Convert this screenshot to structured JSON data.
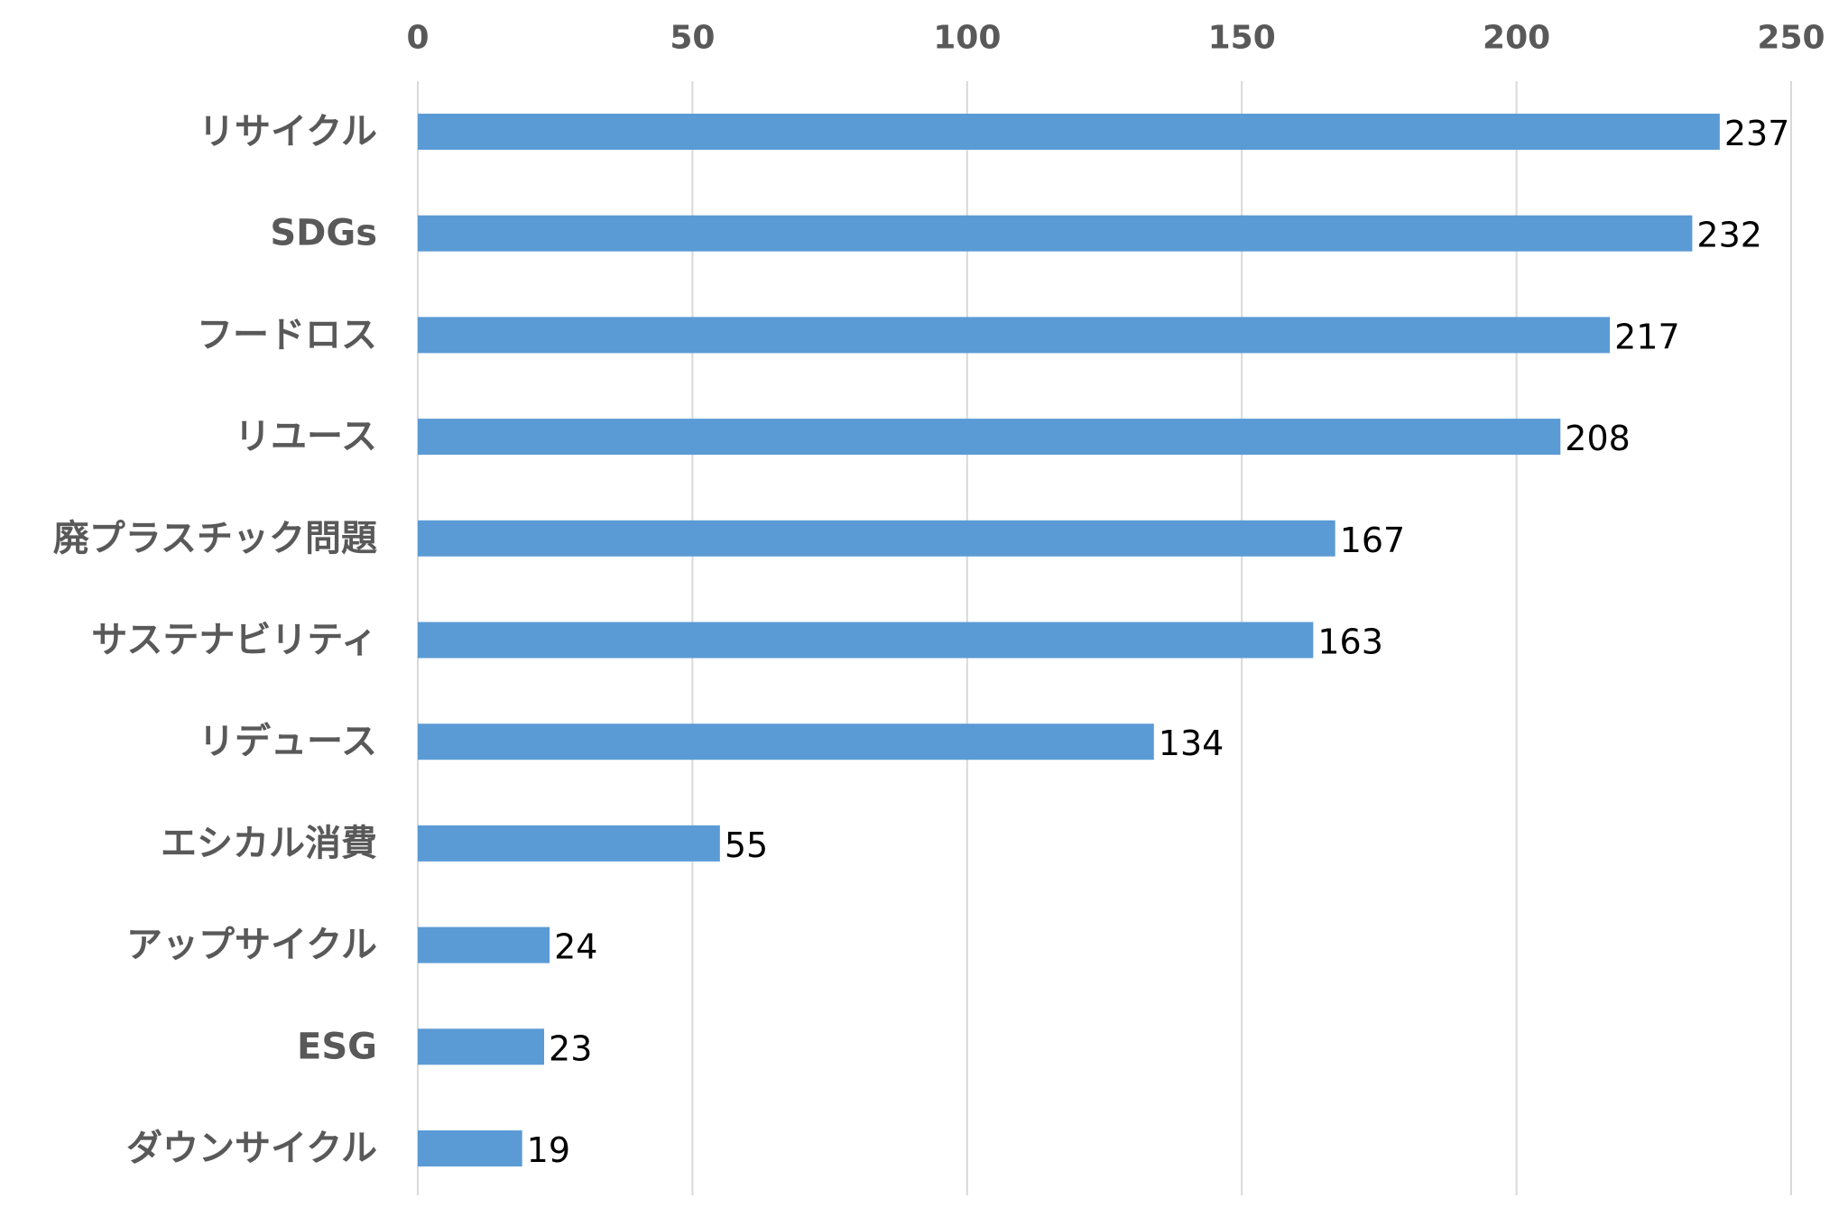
{
  "chart_data": {
    "type": "bar",
    "orientation": "horizontal",
    "categories": [
      "リサイクル",
      "SDGs",
      "フードロス",
      "リユース",
      "廃プラスチック問題",
      "サステナビリティ",
      "リデュース",
      "エシカル消費",
      "アップサイクル",
      "ESG",
      "ダウンサイクル"
    ],
    "values": [
      237,
      232,
      217,
      208,
      167,
      163,
      134,
      55,
      24,
      23,
      19
    ],
    "xlim": [
      0,
      250
    ],
    "xticks": [
      0,
      50,
      100,
      150,
      200,
      250
    ],
    "x_axis_position": "top",
    "grid": true,
    "legend": "none",
    "data_labels": true,
    "colors": {
      "bar": "#5b9bd5",
      "gridline": "#d9d9d9",
      "axis_text": "#595959",
      "data_label": "#000000"
    }
  }
}
